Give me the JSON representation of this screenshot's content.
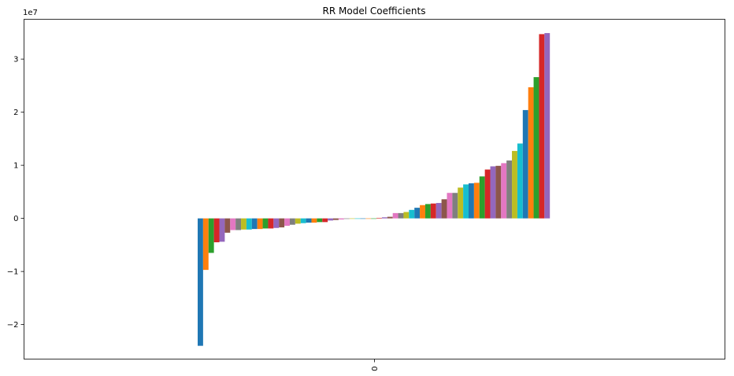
{
  "chart_data": {
    "type": "bar",
    "title": "RR Model Coefficients",
    "xlabel": "",
    "ylabel": "",
    "categories": [
      "0"
    ],
    "y_scale_label": "1e7",
    "y_tick_values": [
      -2,
      -1,
      0,
      1,
      2,
      3
    ],
    "y_tick_labels": [
      "−2",
      "−1",
      "0",
      "1",
      "2",
      "3"
    ],
    "ylim": [
      -2.65,
      3.75
    ],
    "grid": false,
    "legend": "none",
    "series_palette": [
      "#1f77b4",
      "#ff7f0e",
      "#2ca02c",
      "#d62728",
      "#9467bd",
      "#8c564b",
      "#e377c2",
      "#7f7f7f",
      "#bcbd22",
      "#17becf"
    ],
    "series_values": [
      -2.4,
      -0.97,
      -0.65,
      -0.45,
      -0.44,
      -0.27,
      -0.22,
      -0.22,
      -0.21,
      -0.21,
      -0.2,
      -0.2,
      -0.19,
      -0.19,
      -0.18,
      -0.17,
      -0.14,
      -0.12,
      -0.1,
      -0.09,
      -0.08,
      -0.08,
      -0.07,
      -0.07,
      -0.04,
      -0.03,
      -0.02,
      -0.01,
      0.0,
      0.0,
      0.0,
      0.0,
      0.0,
      0.01,
      0.02,
      0.03,
      0.1,
      0.1,
      0.12,
      0.16,
      0.2,
      0.25,
      0.27,
      0.28,
      0.29,
      0.36,
      0.48,
      0.48,
      0.58,
      0.64,
      0.66,
      0.67,
      0.79,
      0.92,
      0.98,
      0.99,
      1.04,
      1.09,
      1.27,
      1.41,
      2.04,
      2.47,
      2.66,
      3.47,
      3.49
    ]
  }
}
